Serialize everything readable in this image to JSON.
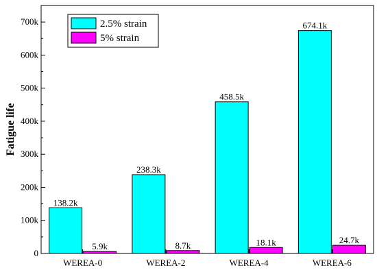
{
  "chart_data": {
    "type": "bar",
    "title": "",
    "xlabel": "",
    "ylabel": "Fatigue life",
    "categories": [
      "WEREA-0",
      "WEREA-2",
      "WEREA-4",
      "WEREA-6"
    ],
    "series": [
      {
        "name": "2.5% strain",
        "color": "#00FFFF",
        "values": [
          138200,
          238300,
          458500,
          674100
        ],
        "labels": [
          "138.2k",
          "238.3k",
          "458.5k",
          "674.1k"
        ]
      },
      {
        "name": "5% strain",
        "color": "#FF00FF",
        "values": [
          5900,
          8700,
          18100,
          24700
        ],
        "labels": [
          "5.9k",
          "8.7k",
          "18.1k",
          "24.7k"
        ]
      }
    ],
    "ylim": [
      0,
      750000
    ],
    "yticks": [
      0,
      100000,
      200000,
      300000,
      400000,
      500000,
      600000,
      700000
    ],
    "ytick_labels": [
      "0",
      "100k",
      "200k",
      "300k",
      "400k",
      "500k",
      "600k",
      "700k"
    ],
    "grid": false,
    "legend_position": "top-left"
  }
}
